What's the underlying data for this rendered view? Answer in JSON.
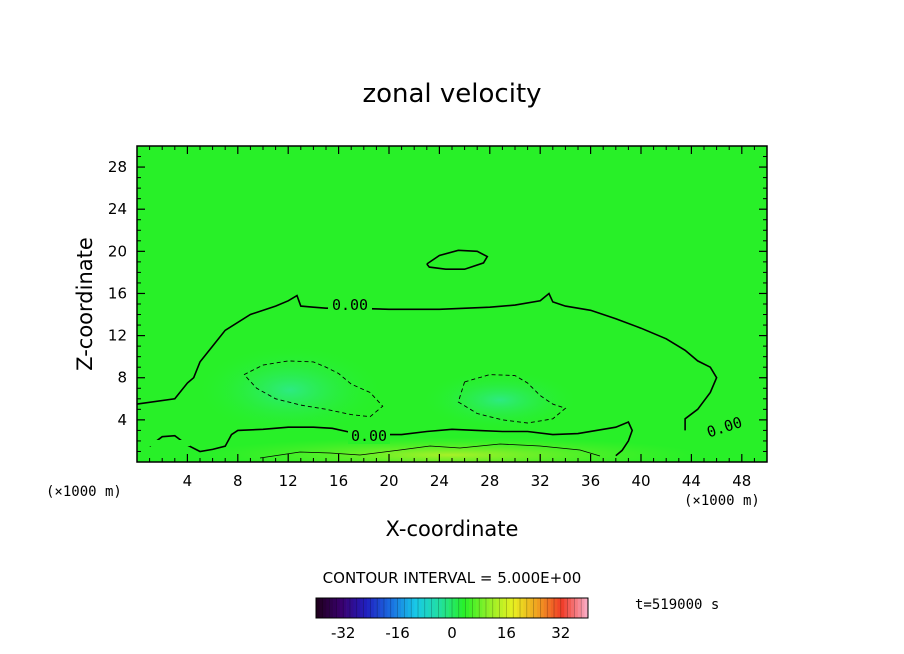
{
  "chart_data": {
    "type": "heatmap",
    "title": "zonal velocity",
    "xlabel": "X-coordinate",
    "ylabel": "Z-coordinate",
    "x_unit": "(×1000 m)",
    "y_unit": "(×1000 m)",
    "xlim": [
      0,
      50
    ],
    "ylim": [
      0,
      30
    ],
    "x_ticks": [
      4,
      8,
      12,
      16,
      20,
      24,
      28,
      32,
      36,
      40,
      44,
      48
    ],
    "y_ticks": [
      4,
      8,
      12,
      16,
      20,
      24,
      28
    ],
    "contour_interval_label": "CONTOUR INTERVAL = 5.000E+00",
    "time_label": "t=519000 s",
    "zero_contour_labels": [
      "0.00",
      "0.00",
      "0.00"
    ],
    "colorbar": {
      "range": [
        -40,
        40
      ],
      "ticks": [
        -32,
        -16,
        0,
        16,
        32
      ],
      "colors": [
        "#200020",
        "#3a0070",
        "#2020c0",
        "#1a6ee0",
        "#18c8e8",
        "#22e0a0",
        "#28f028",
        "#90f028",
        "#e8f020",
        "#f0a020",
        "#f03c28",
        "#f8a8c0"
      ]
    },
    "background_color": "#28f028",
    "zero_contour": [
      [
        0,
        5.5
      ],
      [
        3,
        6
      ],
      [
        4,
        7.5
      ],
      [
        4.5,
        8
      ],
      [
        5,
        9.5
      ],
      [
        6,
        11
      ],
      [
        7,
        12.5
      ],
      [
        9,
        14
      ],
      [
        11,
        14.8
      ],
      [
        12,
        15.3
      ],
      [
        12.7,
        15.8
      ],
      [
        13,
        14.8
      ],
      [
        14,
        14.7
      ],
      [
        15,
        14.6
      ],
      [
        17,
        14.6
      ],
      [
        20,
        14.5
      ],
      [
        24,
        14.5
      ],
      [
        28,
        14.7
      ],
      [
        30,
        14.9
      ],
      [
        32,
        15.3
      ],
      [
        32.7,
        16
      ],
      [
        33,
        15.2
      ],
      [
        34,
        14.8
      ],
      [
        36,
        14.4
      ],
      [
        38,
        13.6
      ],
      [
        40,
        12.7
      ],
      [
        42,
        11.7
      ],
      [
        43.5,
        10.6
      ],
      [
        44.5,
        9.6
      ],
      [
        45.5,
        9
      ],
      [
        46,
        8
      ],
      [
        45.5,
        6.6
      ],
      [
        44.5,
        5
      ],
      [
        43.5,
        4.1
      ],
      [
        43.5,
        3
      ]
    ],
    "upper_closed_contour": [
      [
        23,
        18.8
      ],
      [
        24,
        19.6
      ],
      [
        25.5,
        20.1
      ],
      [
        27,
        20
      ],
      [
        27.8,
        19.5
      ],
      [
        27.5,
        18.9
      ],
      [
        26,
        18.3
      ],
      [
        24.5,
        18.3
      ],
      [
        23.2,
        18.5
      ],
      [
        23,
        18.8
      ]
    ],
    "near_surface_zero_contour": [
      [
        1,
        1.5
      ],
      [
        2,
        2.4
      ],
      [
        3,
        2.5
      ],
      [
        4,
        1.6
      ],
      [
        5,
        1
      ],
      [
        6,
        1.2
      ],
      [
        7,
        1.5
      ],
      [
        7.5,
        2.6
      ],
      [
        8,
        3
      ],
      [
        10,
        3.1
      ],
      [
        12,
        3.3
      ],
      [
        14,
        3.3
      ],
      [
        15.5,
        3.2
      ],
      [
        17,
        2.8
      ],
      [
        19,
        2.6
      ],
      [
        21,
        2.6
      ],
      [
        23,
        2.9
      ],
      [
        25,
        3.1
      ],
      [
        27,
        3
      ],
      [
        29,
        2.9
      ],
      [
        31,
        2.9
      ],
      [
        33,
        2.6
      ],
      [
        35,
        2.7
      ],
      [
        37,
        3.1
      ],
      [
        38,
        3.3
      ],
      [
        39,
        3.8
      ],
      [
        39.3,
        3
      ],
      [
        39,
        2
      ],
      [
        38.5,
        1.1
      ],
      [
        38,
        0.6
      ]
    ],
    "negative_contour_1": [
      [
        8.5,
        8.3
      ],
      [
        10,
        9.2
      ],
      [
        12,
        9.6
      ],
      [
        14,
        9.5
      ],
      [
        15,
        9
      ],
      [
        16,
        8.4
      ],
      [
        17,
        7.4
      ],
      [
        18.5,
        6.6
      ],
      [
        19.5,
        5.3
      ],
      [
        18.5,
        4.3
      ],
      [
        17,
        4.5
      ],
      [
        15,
        5
      ],
      [
        13,
        5.4
      ],
      [
        11,
        6
      ],
      [
        9.5,
        7
      ],
      [
        8.5,
        8.3
      ]
    ],
    "negative_contour_2": [
      [
        26,
        7.6
      ],
      [
        28,
        8.3
      ],
      [
        30,
        8.2
      ],
      [
        31,
        7.5
      ],
      [
        32,
        6.3
      ],
      [
        33,
        5.5
      ],
      [
        34,
        5.1
      ],
      [
        33,
        4.1
      ],
      [
        31,
        3.7
      ],
      [
        29,
        4
      ],
      [
        27,
        4.6
      ],
      [
        25.5,
        5.7
      ],
      [
        26,
        7.6
      ]
    ]
  }
}
